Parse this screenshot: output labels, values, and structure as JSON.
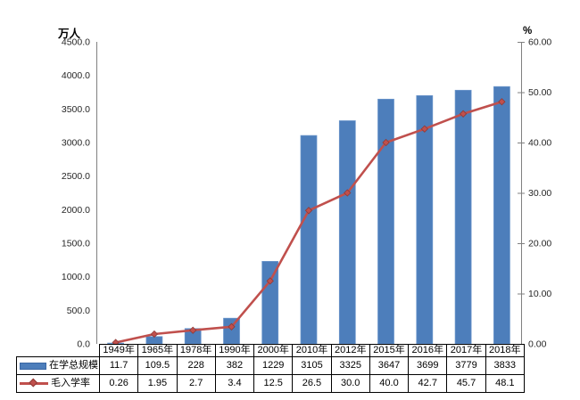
{
  "chart_data": {
    "type": "bar",
    "title": "",
    "categories": [
      "1949年",
      "1965年",
      "1978年",
      "1990年",
      "2000年",
      "2010年",
      "2012年",
      "2015年",
      "2016年",
      "2017年",
      "2018年"
    ],
    "series": [
      {
        "name": "在学总规模",
        "type": "bar",
        "axis": "left",
        "color": "#4D7EBB",
        "border_color": "#3A67A4",
        "values": [
          11.7,
          109.5,
          228,
          382,
          1229,
          3105,
          3325,
          3647,
          3699,
          3779,
          3833
        ],
        "labels": [
          "11.7",
          "109.5",
          "228",
          "382",
          "1229",
          "3105",
          "3325",
          "3647",
          "3699",
          "3779",
          "3833"
        ]
      },
      {
        "name": "毛入学率",
        "type": "line",
        "axis": "right",
        "color": "#C0504D",
        "marker": "diamond",
        "marker_border_color": "#8E3A37",
        "values": [
          0.26,
          1.95,
          2.7,
          3.4,
          12.5,
          26.5,
          30.0,
          40.0,
          42.7,
          45.7,
          48.1
        ],
        "labels": [
          "0.26",
          "1.95",
          "2.7",
          "3.4",
          "12.5",
          "26.5",
          "30.0",
          "40.0",
          "42.7",
          "45.7",
          "48.1"
        ]
      }
    ],
    "left_axis": {
      "title": "万人",
      "min": 0,
      "max": 4500,
      "step": 500,
      "tick_labels": [
        "4500.0",
        "4000.0",
        "3500.0",
        "3000.0",
        "2500.0",
        "2000.0",
        "1500.0",
        "1000.0",
        "500.0",
        "0.0"
      ]
    },
    "right_axis": {
      "title": "%",
      "min": 0,
      "max": 60,
      "step": 10,
      "tick_labels": [
        "60.00",
        "50.00",
        "40.00",
        "30.00",
        "20.00",
        "10.00",
        "0.00"
      ]
    },
    "grid": false,
    "legend_position": "table-left",
    "axis_line_color": "#808080"
  }
}
